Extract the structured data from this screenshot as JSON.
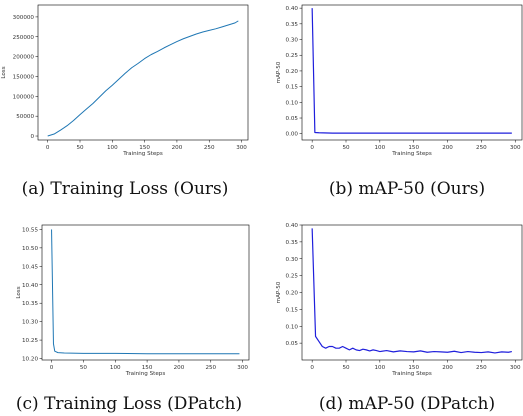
{
  "captions": {
    "a": "(a) Training Loss (Ours)",
    "b": "(b) mAP-50 (Ours)",
    "c": "(c) Training Loss (DPatch)",
    "d": "(d) mAP-50 (DPatch)"
  },
  "colors": {
    "loss": "#1f77b4",
    "map": "#1f1fdc"
  },
  "chart_data": [
    {
      "type": "line",
      "xlabel": "Training Steps",
      "ylabel": "Loss",
      "xlim": [
        -15,
        310
      ],
      "ylim": [
        -10000,
        330000
      ],
      "xticks": [
        0,
        50,
        100,
        150,
        200,
        250,
        300
      ],
      "yticks": [
        0,
        50000,
        100000,
        150000,
        200000,
        250000,
        300000
      ],
      "x": [
        0,
        10,
        20,
        30,
        40,
        50,
        60,
        70,
        80,
        90,
        100,
        110,
        120,
        130,
        140,
        150,
        160,
        170,
        180,
        190,
        200,
        210,
        220,
        230,
        240,
        250,
        260,
        270,
        280,
        290,
        295
      ],
      "y": [
        0,
        5000,
        15000,
        26000,
        39000,
        54000,
        68000,
        82000,
        98000,
        114000,
        128000,
        143000,
        158000,
        172000,
        183000,
        195000,
        205000,
        213000,
        222000,
        230000,
        238000,
        245000,
        251000,
        257000,
        262000,
        266000,
        270000,
        275000,
        280000,
        285000,
        290000
      ]
    },
    {
      "type": "line",
      "xlabel": "Training Steps",
      "ylabel": "mAP-50",
      "xlim": [
        -15,
        310
      ],
      "ylim": [
        -0.02,
        0.41
      ],
      "xticks": [
        0,
        50,
        100,
        150,
        200,
        250,
        300
      ],
      "yticks": [
        0.0,
        0.05,
        0.1,
        0.15,
        0.2,
        0.25,
        0.3,
        0.35,
        0.4
      ],
      "x": [
        0,
        4,
        10,
        30,
        60,
        100,
        150,
        200,
        250,
        295
      ],
      "y": [
        0.4,
        0.004,
        0.003,
        0.002,
        0.002,
        0.002,
        0.002,
        0.002,
        0.002,
        0.002
      ]
    },
    {
      "type": "line",
      "xlabel": "Training Steps",
      "ylabel": "Loss",
      "xlim": [
        -15,
        310
      ],
      "ylim": [
        10.196,
        10.562
      ],
      "xticks": [
        0,
        50,
        100,
        150,
        200,
        250,
        300
      ],
      "yticks": [
        10.2,
        10.25,
        10.3,
        10.35,
        10.4,
        10.45,
        10.5,
        10.55
      ],
      "x": [
        0,
        3,
        5,
        10,
        20,
        50,
        100,
        150,
        200,
        250,
        295
      ],
      "y": [
        10.55,
        10.24,
        10.22,
        10.216,
        10.215,
        10.214,
        10.214,
        10.213,
        10.213,
        10.213,
        10.213
      ]
    },
    {
      "type": "line",
      "xlabel": "Training Steps",
      "ylabel": "mAP-50",
      "xlim": [
        -15,
        310
      ],
      "ylim": [
        0.0,
        0.4
      ],
      "xticks": [
        0,
        50,
        100,
        150,
        200,
        250,
        300
      ],
      "yticks": [
        0.05,
        0.1,
        0.15,
        0.2,
        0.25,
        0.3,
        0.35,
        0.4
      ],
      "x": [
        0,
        5,
        10,
        15,
        20,
        25,
        30,
        35,
        40,
        45,
        50,
        55,
        60,
        65,
        70,
        75,
        80,
        85,
        90,
        95,
        100,
        110,
        120,
        130,
        140,
        150,
        160,
        170,
        180,
        190,
        200,
        210,
        220,
        230,
        240,
        250,
        260,
        270,
        280,
        290,
        295
      ],
      "y": [
        0.39,
        0.07,
        0.055,
        0.04,
        0.035,
        0.04,
        0.04,
        0.035,
        0.035,
        0.04,
        0.035,
        0.03,
        0.035,
        0.03,
        0.028,
        0.032,
        0.03,
        0.027,
        0.03,
        0.028,
        0.025,
        0.028,
        0.024,
        0.027,
        0.025,
        0.024,
        0.027,
        0.023,
        0.025,
        0.024,
        0.023,
        0.026,
        0.022,
        0.025,
        0.023,
        0.022,
        0.024,
        0.021,
        0.024,
        0.023,
        0.025
      ]
    }
  ]
}
